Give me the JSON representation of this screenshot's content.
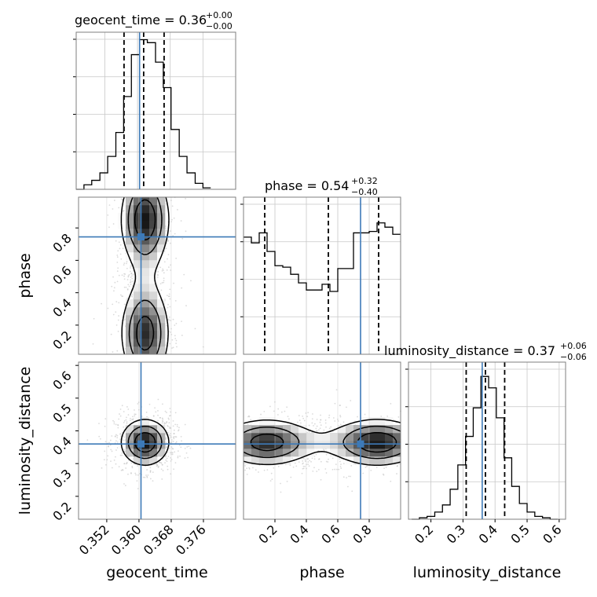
{
  "figure": {
    "type": "corner-plot",
    "truth_color": "#3d7ab8"
  },
  "chart_data": [
    {
      "type": "histogram",
      "parameter": "geocent_time",
      "title": {
        "text": "geocent_time = 0.36",
        "plus": "+0.00",
        "minus": "−0.00"
      },
      "x_range": [
        0.345,
        0.384
      ],
      "y_range": [
        0,
        1.05
      ],
      "bin_edges": [
        0.345,
        0.3469,
        0.3488,
        0.3508,
        0.3527,
        0.3547,
        0.3566,
        0.3585,
        0.3605,
        0.3624,
        0.3644,
        0.3663,
        0.3682,
        0.3702,
        0.3721,
        0.3741,
        0.376,
        0.3779
      ],
      "counts": [
        0.0,
        0.03,
        0.06,
        0.11,
        0.22,
        0.38,
        0.62,
        0.9,
        1.0,
        0.98,
        0.85,
        0.68,
        0.4,
        0.22,
        0.11,
        0.04,
        0.01
      ],
      "quantiles": [
        0.3567,
        0.3615,
        0.3665
      ],
      "truth": 0.3605,
      "x_ticks": [
        0.352,
        0.36,
        0.368,
        0.376
      ],
      "x_tick_labels": [
        "0.352",
        "0.360",
        "0.368",
        "0.376"
      ],
      "xlabel": "geocent_time"
    },
    {
      "type": "histogram",
      "parameter": "phase",
      "title": {
        "text": "phase = 0.54",
        "plus": "+0.32",
        "minus": "−0.40"
      },
      "x_range": [
        0.0,
        1.0
      ],
      "y_range": [
        0,
        1.1
      ],
      "bin_edges": [
        0.0,
        0.05,
        0.1,
        0.15,
        0.2,
        0.25,
        0.3,
        0.35,
        0.4,
        0.45,
        0.5,
        0.55,
        0.6,
        0.65,
        0.7,
        0.75,
        0.8,
        0.85,
        0.9,
        0.95,
        1.0
      ],
      "counts": [
        0.82,
        0.78,
        0.85,
        0.72,
        0.62,
        0.61,
        0.56,
        0.5,
        0.45,
        0.45,
        0.49,
        0.44,
        0.6,
        0.6,
        0.85,
        0.85,
        0.86,
        0.92,
        0.89,
        0.84
      ],
      "quantiles": [
        0.135,
        0.54,
        0.86
      ],
      "truth": 0.745,
      "x_ticks": [
        0.2,
        0.4,
        0.6,
        0.8
      ],
      "x_tick_labels": [
        "0.2",
        "0.4",
        "0.6",
        "0.8"
      ],
      "xlabel": "phase"
    },
    {
      "type": "histogram",
      "parameter": "luminosity_distance",
      "title": {
        "text": "luminosity_distance = 0.37",
        "plus": "+0.06",
        "minus": "−0.06"
      },
      "x_range": [
        0.13,
        0.62
      ],
      "y_range": [
        0,
        1.1
      ],
      "bin_edges": [
        0.14,
        0.164,
        0.188,
        0.212,
        0.236,
        0.26,
        0.284,
        0.308,
        0.332,
        0.356,
        0.38,
        0.404,
        0.428,
        0.452,
        0.476,
        0.5,
        0.524,
        0.548,
        0.572,
        0.596
      ],
      "counts": [
        0.0,
        0.01,
        0.02,
        0.05,
        0.1,
        0.21,
        0.38,
        0.58,
        0.78,
        1.0,
        0.92,
        0.71,
        0.43,
        0.23,
        0.11,
        0.05,
        0.02,
        0.01,
        0.0
      ],
      "quantiles": [
        0.31,
        0.37,
        0.43
      ],
      "truth": 0.36,
      "x_ticks": [
        0.2,
        0.3,
        0.4,
        0.5,
        0.6
      ],
      "x_tick_labels": [
        "0.2",
        "0.3",
        "0.4",
        "0.5",
        "0.6"
      ],
      "xlabel": "luminosity_distance"
    },
    {
      "type": "heatmap",
      "x_parameter": "geocent_time",
      "y_parameter": "phase",
      "x_range": [
        0.345,
        0.384
      ],
      "y_range": [
        0.02,
        0.99
      ],
      "truth": {
        "x": 0.3605,
        "y": 0.745
      },
      "y_ticks": [
        0.2,
        0.4,
        0.6,
        0.8
      ],
      "y_tick_labels": [
        "0.2",
        "0.4",
        "0.6",
        "0.8"
      ],
      "ylabel": "phase",
      "density_x_center": 0.3615,
      "density_x_sigma": 0.0038,
      "density_y_modes": [
        0.15,
        0.85
      ]
    },
    {
      "type": "heatmap",
      "x_parameter": "geocent_time",
      "y_parameter": "luminosity_distance",
      "x_range": [
        0.345,
        0.384
      ],
      "y_range": [
        0.13,
        0.61
      ],
      "truth": {
        "x": 0.3605,
        "y": 0.36
      },
      "y_ticks": [
        0.2,
        0.3,
        0.4,
        0.5,
        0.6
      ],
      "y_tick_labels": [
        "0.2",
        "0.3",
        "0.4",
        "0.5",
        "0.6"
      ],
      "ylabel": "luminosity_distance",
      "density_x_center": 0.3615,
      "density_x_sigma": 0.0038,
      "density_y_center": 0.365,
      "density_y_sigma": 0.045
    },
    {
      "type": "heatmap",
      "x_parameter": "phase",
      "y_parameter": "luminosity_distance",
      "x_range": [
        0.0,
        1.0
      ],
      "y_range": [
        0.13,
        0.61
      ],
      "truth": {
        "x": 0.745,
        "y": 0.36
      },
      "density_x_modes": [
        0.15,
        0.85
      ],
      "density_y_center": 0.365,
      "density_y_sigma": 0.045
    }
  ]
}
